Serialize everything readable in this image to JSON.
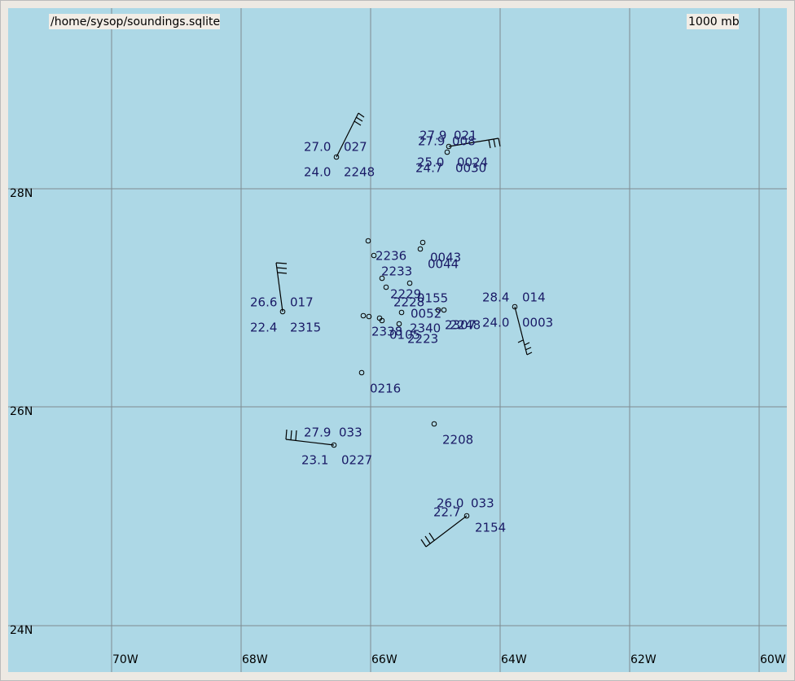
{
  "header": {
    "source": "/home/sysop/soundings.sqlite",
    "level": "1000 mb"
  },
  "lon_labels": [
    "70W",
    "68W",
    "66W",
    "64W",
    "62W",
    "60W"
  ],
  "lat_labels": [
    "28N",
    "26N",
    "24N"
  ],
  "station_labels": [
    "27.0",
    "027",
    "24.0",
    "2248",
    "27.9",
    "021",
    "27.9",
    "008",
    "25.0",
    "0024",
    "24.7",
    "0030",
    "2236",
    "0043",
    "0044",
    "2233",
    "2229",
    "0155",
    "2228",
    "0052",
    "28.4",
    "014",
    "24.0",
    "0003",
    "2340",
    "2338",
    "0105",
    "2223",
    "2307",
    "2248",
    "0216",
    "26.6",
    "017",
    "22.4",
    "2315",
    "27.9",
    "033",
    "23.1",
    "0227",
    "2208",
    "26.0",
    "033",
    "22.7",
    "2154"
  ]
}
